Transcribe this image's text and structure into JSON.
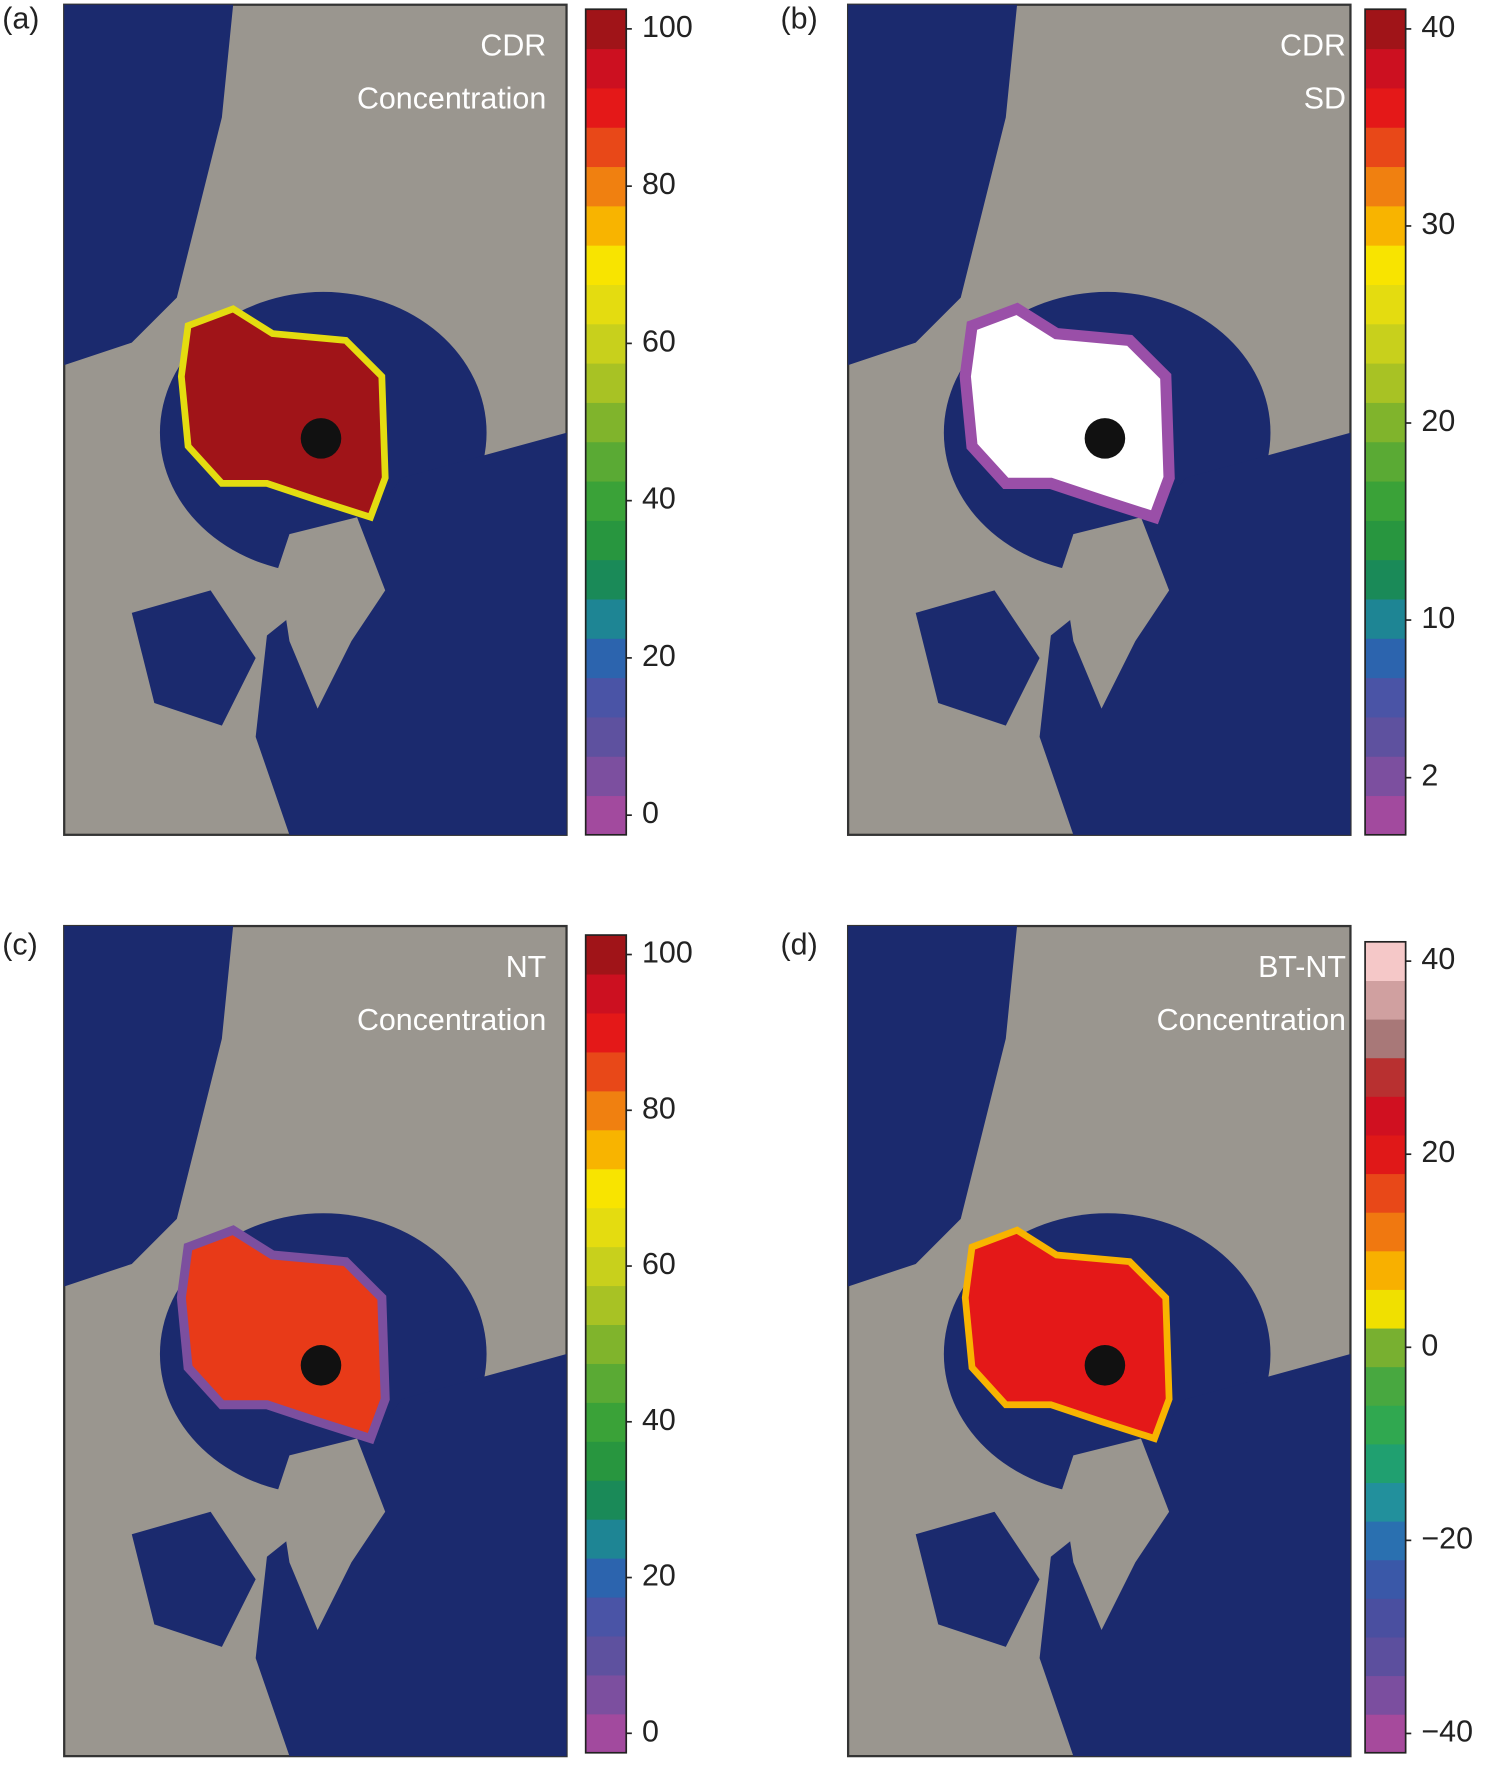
{
  "chart_data": [
    {
      "type": "map",
      "panel_label": "(a)",
      "title": "CDR",
      "subtitle": "Concentration",
      "colorbar": {
        "clim": [
          -2.5,
          102.5
        ],
        "ticks": [
          100,
          80,
          60,
          40,
          20,
          0
        ],
        "colors": [
          "#a24a9e",
          "#7c4f9f",
          "#5e519f",
          "#4a54a6",
          "#2c64ae",
          "#1e8594",
          "#1a8a58",
          "#28963f",
          "#3aa238",
          "#5aaa34",
          "#80b42c",
          "#a8c224",
          "#c8d01c",
          "#e4dc10",
          "#f8e400",
          "#f8b400",
          "#f08010",
          "#e84818",
          "#e41818",
          "#cc1020",
          "#a01418"
        ]
      }
    },
    {
      "type": "map",
      "panel_label": "(b)",
      "title": "CDR",
      "subtitle": "SD",
      "colorbar": {
        "clim": [
          -0.9,
          41
        ],
        "ticks": [
          40,
          30,
          20,
          10,
          2
        ],
        "colors": [
          "#a24a9e",
          "#7c4f9f",
          "#5e519f",
          "#4a54a6",
          "#2c64ae",
          "#1e8594",
          "#1a8a58",
          "#28963f",
          "#3aa238",
          "#5aaa34",
          "#80b42c",
          "#a8c224",
          "#c8d01c",
          "#e4dc10",
          "#f8e400",
          "#f8b400",
          "#f08010",
          "#e84818",
          "#e41818",
          "#cc1020",
          "#a01418"
        ]
      }
    },
    {
      "type": "map",
      "panel_label": "(c)",
      "title": "NT",
      "subtitle": "Concentration",
      "colorbar": {
        "clim": [
          -2.5,
          102.5
        ],
        "ticks": [
          100,
          80,
          60,
          40,
          20,
          0
        ],
        "colors": [
          "#a24a9e",
          "#7c4f9f",
          "#5e519f",
          "#4a54a6",
          "#2c64ae",
          "#1e8594",
          "#1a8a58",
          "#28963f",
          "#3aa238",
          "#5aaa34",
          "#80b42c",
          "#a8c224",
          "#c8d01c",
          "#e4dc10",
          "#f8e400",
          "#f8b400",
          "#f08010",
          "#e84818",
          "#e41818",
          "#cc1020",
          "#a01418"
        ]
      }
    },
    {
      "type": "map",
      "panel_label": "(d)",
      "title": "BT-NT",
      "subtitle": "Concentration",
      "colorbar": {
        "clim": [
          -42,
          42
        ],
        "ticks": [
          40,
          20,
          0,
          {
            "value": -20,
            "label": "−20"
          },
          {
            "value": -40,
            "label": "−40"
          }
        ],
        "colors": [
          "#a64a9c",
          "#7b4e9f",
          "#5c4f9e",
          "#4a4fa0",
          "#3a58a8",
          "#2a70b0",
          "#22909c",
          "#20a070",
          "#30a850",
          "#48a840",
          "#78b030",
          "#f0e000",
          "#f8b000",
          "#f07810",
          "#e84818",
          "#e01818",
          "#d01020",
          "#b83030",
          "#a87878",
          "#d0a0a0",
          "#f5c8c8"
        ]
      }
    }
  ]
}
